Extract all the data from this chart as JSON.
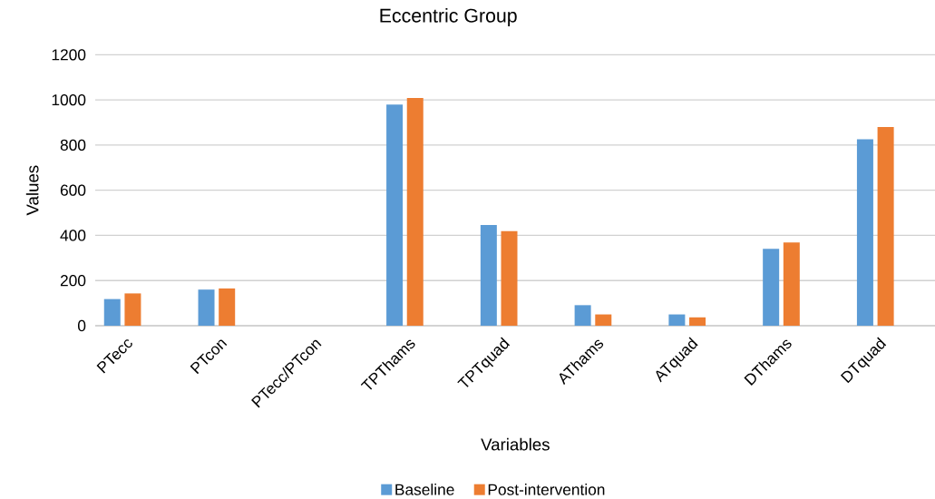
{
  "chart_data": {
    "type": "bar",
    "title": "Eccentric Group",
    "xlabel": "Variables",
    "ylabel": "Values",
    "categories": [
      "PTecc",
      "PTcon",
      "PTecc/PTcon",
      "TPThams",
      "TPTquad",
      "AThams",
      "ATquad",
      "DThams",
      "DTquad"
    ],
    "series": [
      {
        "name": "Baseline",
        "color": "#5b9bd5",
        "values": [
          118,
          160,
          0,
          979,
          446,
          91,
          50,
          341,
          826
        ]
      },
      {
        "name": "Post-intervention",
        "color": "#ed7d31",
        "values": [
          143,
          165,
          0,
          1008,
          419,
          50,
          37,
          369,
          880
        ]
      }
    ],
    "ylim": [
      0,
      1200
    ],
    "yticks": [
      0,
      200,
      400,
      600,
      800,
      1000,
      1200
    ],
    "grid": "y",
    "legend": "bottom"
  }
}
